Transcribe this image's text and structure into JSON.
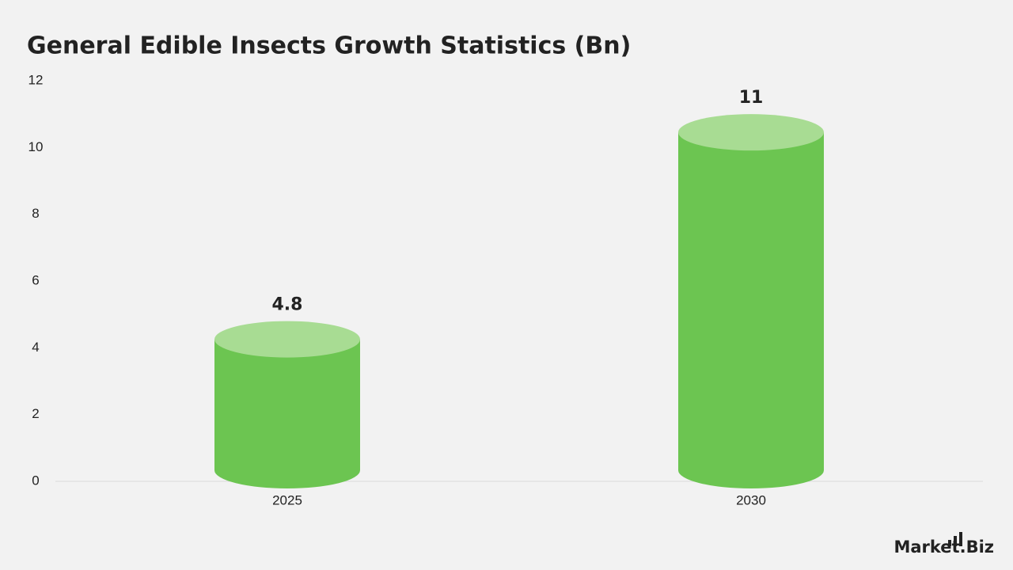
{
  "chart_data": {
    "type": "cylinder-bar",
    "title": "General Edible Insects Growth Statistics (Bn)",
    "categories": [
      "2025",
      "2030"
    ],
    "values": [
      4.8,
      11
    ],
    "color": "#6cc551",
    "top_color": "#a8dc93",
    "ylim": [
      0,
      12
    ],
    "yticks": [
      0,
      2,
      4,
      6,
      8,
      10,
      12
    ],
    "grid": false
  },
  "logo": "Market.Biz"
}
